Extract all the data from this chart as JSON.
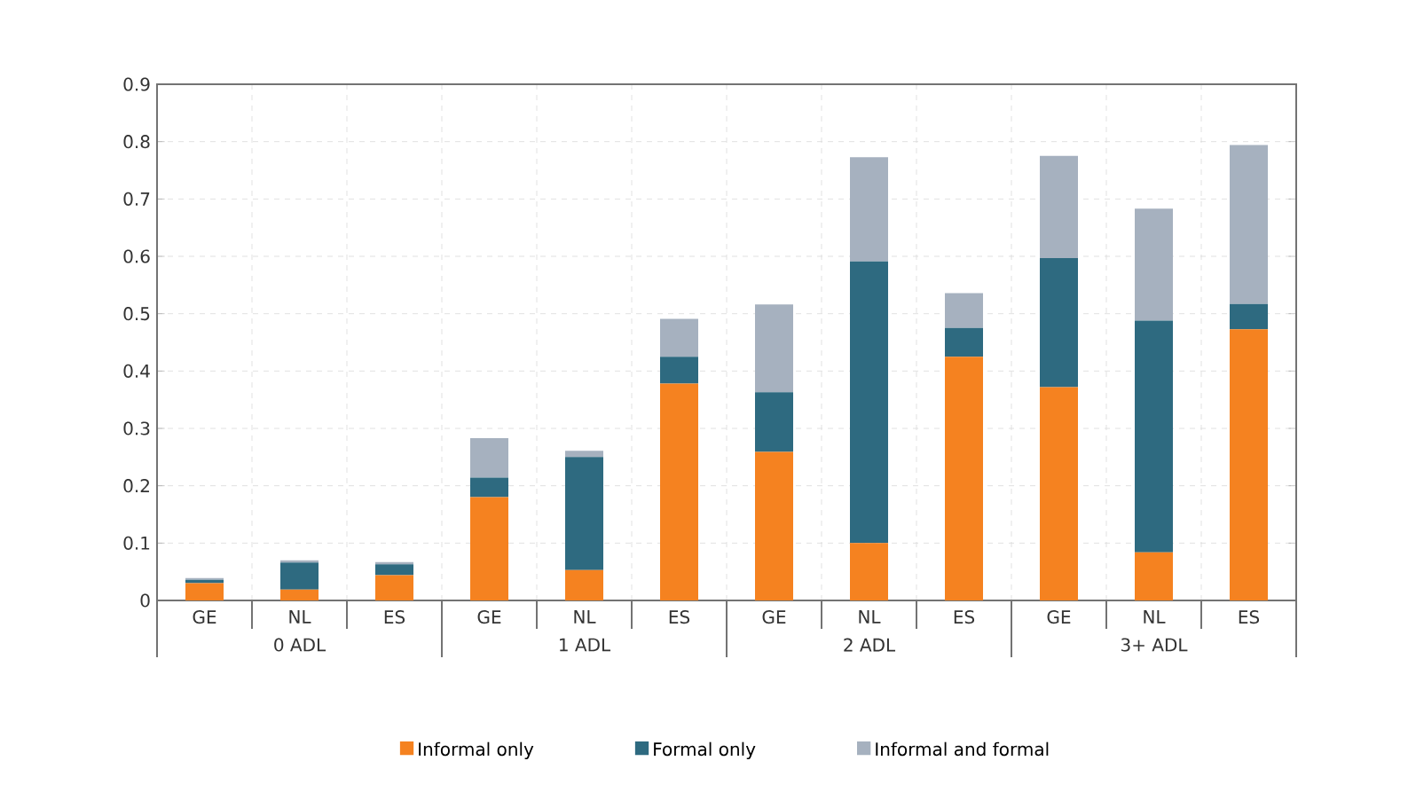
{
  "chart_data": {
    "type": "bar",
    "stacked": true,
    "categories": [
      "GE",
      "NL",
      "ES",
      "GE",
      "NL",
      "ES",
      "GE",
      "NL",
      "ES",
      "GE",
      "NL",
      "ES"
    ],
    "series": [
      {
        "name": "Informal only",
        "color": "#f58220",
        "values": [
          0.03,
          0.019,
          0.044,
          0.18,
          0.053,
          0.378,
          0.259,
          0.1,
          0.425,
          0.372,
          0.084,
          0.473
        ]
      },
      {
        "name": "Formal only",
        "color": "#2e6a80",
        "values": [
          0.006,
          0.047,
          0.019,
          0.034,
          0.197,
          0.047,
          0.104,
          0.491,
          0.05,
          0.225,
          0.404,
          0.044
        ]
      },
      {
        "name": "Informal and formal",
        "color": "#a6b1bf",
        "values": [
          0.003,
          0.004,
          0.004,
          0.069,
          0.011,
          0.066,
          0.153,
          0.182,
          0.061,
          0.178,
          0.195,
          0.277
        ]
      }
    ],
    "annotations": [
      "0 ADL",
      "1 ADL",
      "2 ADL",
      "3+ ADL"
    ],
    "ylim": [
      0,
      0.9
    ],
    "yticks": [
      0,
      0.1,
      0.2,
      0.3,
      0.4,
      0.5,
      0.6,
      0.7,
      0.8,
      0.9
    ],
    "grid": true,
    "legend": "bottom"
  }
}
